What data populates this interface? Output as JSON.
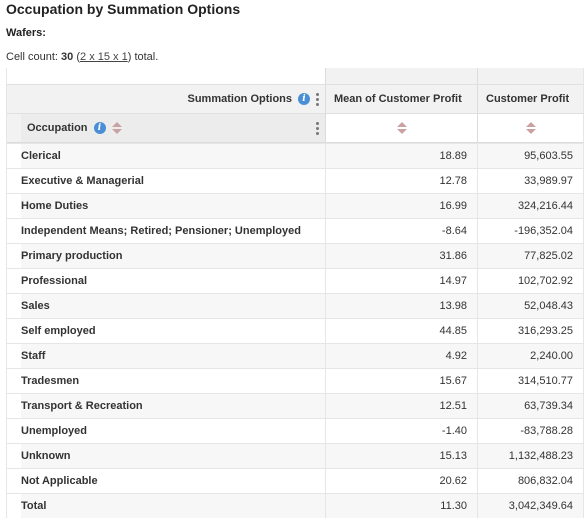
{
  "title": "Occupation by Summation Options",
  "wafers_label": "Wafers:",
  "cell_count": {
    "prefix": "Cell count: ",
    "count": "30",
    "open_paren": " (",
    "dims": "2 x 15 x 1",
    "close": ") total."
  },
  "header": {
    "column_dimension": "Summation Options",
    "row_dimension": "Occupation",
    "columns": [
      "Mean of Customer Profit",
      "Customer Profit"
    ]
  },
  "rows": [
    {
      "label": "Clerical",
      "mean": "18.89",
      "profit": "95,603.55"
    },
    {
      "label": "Executive & Managerial",
      "mean": "12.78",
      "profit": "33,989.97"
    },
    {
      "label": "Home Duties",
      "mean": "16.99",
      "profit": "324,216.44"
    },
    {
      "label": "Independent Means; Retired; Pensioner; Unemployed",
      "mean": "-8.64",
      "profit": "-196,352.04"
    },
    {
      "label": "Primary production",
      "mean": "31.86",
      "profit": "77,825.02"
    },
    {
      "label": "Professional",
      "mean": "14.97",
      "profit": "102,702.92"
    },
    {
      "label": "Sales",
      "mean": "13.98",
      "profit": "52,048.43"
    },
    {
      "label": "Self employed",
      "mean": "44.85",
      "profit": "316,293.25"
    },
    {
      "label": "Staff",
      "mean": "4.92",
      "profit": "2,240.00"
    },
    {
      "label": "Tradesmen",
      "mean": "15.67",
      "profit": "314,510.77"
    },
    {
      "label": "Transport & Recreation",
      "mean": "12.51",
      "profit": "63,739.34"
    },
    {
      "label": "Unemployed",
      "mean": "-1.40",
      "profit": "-83,788.28"
    },
    {
      "label": "Unknown",
      "mean": "15.13",
      "profit": "1,132,488.23"
    },
    {
      "label": "Not Applicable",
      "mean": "20.62",
      "profit": "806,832.04"
    },
    {
      "label": "Total",
      "mean": "11.30",
      "profit": "3,042,349.64"
    }
  ],
  "icons": {
    "info": "info-icon",
    "menu": "kebab-menu-icon",
    "sort": "sort-icon"
  },
  "colors": {
    "info_blue": "#4a8fd6",
    "sort_arrow": "#c9a3a3",
    "header_bg": "#f2f2f2"
  }
}
